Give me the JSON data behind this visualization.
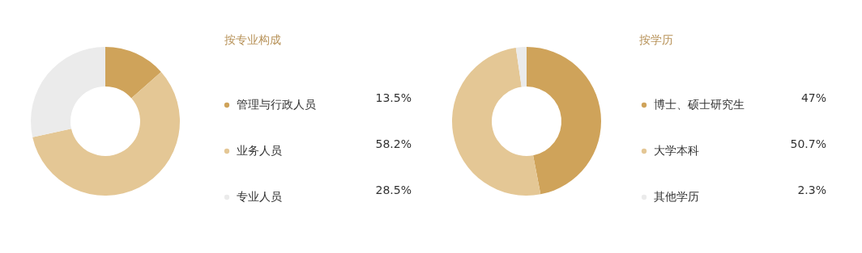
{
  "chart_data": [
    {
      "type": "donut",
      "title": "按专业构成",
      "legend": "right",
      "categories": [
        "管理与行政人员",
        "业务人员",
        "专业人员"
      ],
      "values": [
        13.5,
        58.2,
        28.5
      ],
      "value_labels": [
        "13.5%",
        "58.2%",
        "28.5%"
      ],
      "colors": [
        "#cfa35a",
        "#e4c795",
        "#ebebeb"
      ]
    },
    {
      "type": "donut",
      "title": "按学历",
      "legend": "right",
      "categories": [
        "博士、硕士研究生",
        "大学本科",
        "其他学历"
      ],
      "values": [
        47,
        50.7,
        2.3
      ],
      "value_labels": [
        "47%",
        "50.7%",
        "2.3%"
      ],
      "colors": [
        "#d2a458",
        "#e6c898",
        "#ececec"
      ]
    }
  ]
}
